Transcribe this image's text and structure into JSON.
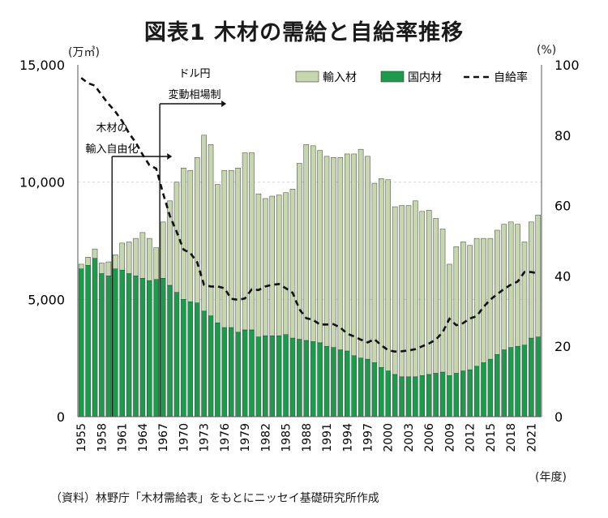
{
  "title": "図表1 木材の需給と自給率推移",
  "left_unit": "(万㎥)",
  "right_unit": "(%)",
  "x_unit": "(年度)",
  "source_note": "（資料）林野庁「木材需給表」をもとにニッセイ基礎研究所作成",
  "colors": {
    "import": "#c6d7af",
    "domestic": "#1e9a4c",
    "ratio": "#111111",
    "grid": "#d8d8d8"
  },
  "annotations": [
    {
      "id": "liberalization",
      "year": 1960,
      "lines": [
        "木材の",
        "輸入自由化"
      ],
      "arrow": "right"
    },
    {
      "id": "fx",
      "year": 1967,
      "lines": [
        "ドル円",
        "変動相場制"
      ],
      "arrow": "right"
    }
  ],
  "chart_data": {
    "type": "bar",
    "stacked": true,
    "years": [
      1955,
      1956,
      1957,
      1958,
      1959,
      1960,
      1961,
      1962,
      1963,
      1964,
      1965,
      1966,
      1967,
      1968,
      1969,
      1970,
      1971,
      1972,
      1973,
      1974,
      1975,
      1976,
      1977,
      1978,
      1979,
      1980,
      1981,
      1982,
      1983,
      1984,
      1985,
      1986,
      1987,
      1988,
      1989,
      1990,
      1991,
      1992,
      1993,
      1994,
      1995,
      1996,
      1997,
      1998,
      1999,
      2000,
      2001,
      2002,
      2003,
      2004,
      2005,
      2006,
      2007,
      2008,
      2009,
      2010,
      2011,
      2012,
      2013,
      2014,
      2015,
      2016,
      2017,
      2018,
      2019,
      2020,
      2021,
      2022
    ],
    "x_tick_labels": [
      "1955",
      "1958",
      "1961",
      "1964",
      "1967",
      "1970",
      "1973",
      "1976",
      "1979",
      "1982",
      "1985",
      "1988",
      "1991",
      "1994",
      "1997",
      "2000",
      "2003",
      "2006",
      "2009",
      "2012",
      "2015",
      "2018",
      "2021"
    ],
    "legend": [
      "輸入材",
      "国内材",
      "自給率"
    ],
    "series": [
      {
        "name": "国内材",
        "values": [
          6300,
          6450,
          6750,
          6100,
          6000,
          6300,
          6250,
          6100,
          6000,
          5900,
          5800,
          5850,
          5900,
          5600,
          5300,
          5000,
          4900,
          4850,
          4500,
          4300,
          4000,
          3800,
          3800,
          3600,
          3700,
          3700,
          3400,
          3450,
          3450,
          3450,
          3500,
          3350,
          3300,
          3250,
          3200,
          3150,
          3000,
          2950,
          2850,
          2800,
          2600,
          2500,
          2450,
          2300,
          2100,
          1950,
          1800,
          1700,
          1700,
          1700,
          1750,
          1800,
          1850,
          1900,
          1750,
          1850,
          1950,
          2000,
          2150,
          2300,
          2450,
          2650,
          2850,
          2950,
          3000,
          3050,
          3350,
          3400
        ]
      },
      {
        "name": "輸入材",
        "values": [
          200,
          350,
          400,
          450,
          600,
          600,
          1150,
          1350,
          1600,
          1950,
          1800,
          1350,
          2400,
          3600,
          4700,
          5600,
          5600,
          6200,
          7500,
          7300,
          5900,
          6700,
          6700,
          7000,
          7550,
          7550,
          6100,
          5850,
          5950,
          6000,
          6050,
          6350,
          7500,
          8350,
          8350,
          8200,
          8100,
          8100,
          8200,
          8400,
          8600,
          8900,
          8650,
          7650,
          8050,
          8150,
          7150,
          7300,
          7300,
          7500,
          7000,
          7000,
          6600,
          6100,
          4750,
          5400,
          5500,
          5300,
          5450,
          5300,
          5150,
          5300,
          5350,
          5350,
          5200,
          4400,
          4950,
          5200
        ]
      },
      {
        "name": "自給率",
        "axis": "right",
        "values": [
          96.3,
          94.8,
          94.1,
          91.4,
          88.9,
          86.7,
          84.0,
          80.6,
          77.9,
          74.5,
          71.5,
          70.5,
          63.5,
          57.0,
          52.5,
          47.5,
          46.5,
          43.9,
          37.5,
          37.0,
          37.0,
          36.5,
          33.5,
          33.2,
          33.6,
          36.2,
          36.0,
          37.0,
          37.5,
          37.7,
          36.5,
          35.2,
          30.5,
          28.0,
          27.5,
          26.2,
          26.2,
          26.3,
          25.3,
          23.6,
          22.8,
          21.9,
          21.1,
          22.0,
          20.3,
          18.9,
          18.5,
          18.6,
          18.8,
          19.2,
          20.0,
          20.8,
          21.9,
          24.0,
          27.8,
          26.0,
          26.6,
          27.9,
          28.6,
          31.2,
          33.3,
          34.8,
          36.3,
          37.5,
          38.4,
          41.1,
          41.1,
          40.7
        ]
      }
    ],
    "ylim_left": [
      0,
      15000
    ],
    "ylim_right": [
      0,
      100
    ],
    "yticks_left": [
      "0",
      "5,000",
      "10,000",
      "15,000"
    ],
    "yticks_right": [
      "0",
      "20",
      "40",
      "60",
      "80",
      "100"
    ]
  }
}
